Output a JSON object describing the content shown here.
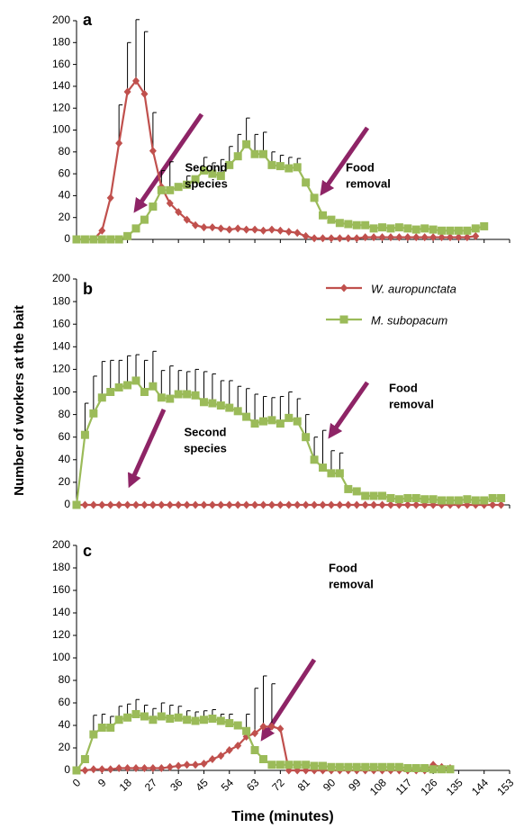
{
  "axis_labels": {
    "y": "Number of workers at the bait",
    "x": "Time (minutes)"
  },
  "chart_data": [
    {
      "type": "line",
      "panel_label": "a",
      "xlim": [
        0,
        153
      ],
      "ylim": [
        0,
        200
      ],
      "xticks": [
        0,
        9,
        18,
        27,
        36,
        45,
        54,
        63,
        72,
        81,
        90,
        99,
        108,
        117,
        126,
        135,
        144,
        153
      ],
      "yticks": [
        0,
        20,
        40,
        60,
        80,
        100,
        120,
        140,
        160,
        180,
        200
      ],
      "show_xtick_labels": false,
      "x": [
        0,
        3,
        6,
        9,
        12,
        15,
        18,
        21,
        24,
        27,
        30,
        33,
        36,
        39,
        42,
        45,
        48,
        51,
        54,
        57,
        60,
        63,
        66,
        69,
        72,
        75,
        78,
        81,
        84,
        87,
        90,
        93,
        96,
        99,
        102,
        105,
        108,
        111,
        114,
        117,
        120,
        123,
        126,
        129,
        132,
        135,
        138,
        141,
        144
      ],
      "series": [
        {
          "color": "#c0504d",
          "marker": "diamond",
          "values": [
            0,
            0,
            0,
            8,
            38,
            88,
            135,
            145,
            133,
            81,
            48,
            33,
            25,
            18,
            13,
            11,
            11,
            10,
            9,
            10,
            9,
            9,
            8,
            9,
            8,
            7,
            6,
            3,
            1,
            1,
            1,
            1,
            1,
            1,
            2,
            2,
            2,
            2,
            2,
            2,
            2,
            2,
            2,
            2,
            2,
            2,
            2,
            3,
            null
          ],
          "errors": [
            null,
            null,
            null,
            null,
            null,
            35,
            45,
            56,
            57,
            35,
            15,
            null,
            null,
            null,
            null,
            null,
            null,
            null,
            null,
            null,
            null,
            null,
            null,
            null,
            null,
            null,
            null,
            null,
            null,
            null,
            null,
            null,
            null,
            null,
            null,
            null,
            null,
            null,
            null,
            null,
            null,
            null,
            null,
            null,
            null,
            null,
            null,
            null,
            null
          ]
        },
        {
          "color": "#9bbb59",
          "marker": "square",
          "values": [
            0,
            0,
            0,
            0,
            0,
            0,
            3,
            10,
            18,
            30,
            45,
            45,
            48,
            50,
            55,
            63,
            60,
            58,
            68,
            76,
            87,
            78,
            78,
            68,
            67,
            65,
            66,
            52,
            38,
            22,
            18,
            15,
            14,
            13,
            13,
            10,
            11,
            10,
            11,
            10,
            9,
            10,
            9,
            8,
            8,
            8,
            8,
            10,
            12
          ],
          "errors": [
            null,
            null,
            null,
            null,
            null,
            null,
            null,
            null,
            null,
            null,
            null,
            26,
            null,
            8,
            null,
            12,
            10,
            15,
            17,
            20,
            24,
            18,
            20,
            12,
            10,
            10,
            8,
            null,
            null,
            null,
            null,
            null,
            null,
            null,
            null,
            null,
            null,
            null,
            null,
            null,
            null,
            null,
            null,
            null,
            null,
            null,
            null,
            null,
            null
          ]
        }
      ],
      "annotations": [
        {
          "lines": [
            "Second",
            "species"
          ]
        },
        {
          "lines": [
            "Food",
            "removal"
          ]
        }
      ]
    },
    {
      "type": "line",
      "panel_label": "b",
      "xlim": [
        0,
        153
      ],
      "ylim": [
        0,
        200
      ],
      "xticks": [
        0,
        9,
        18,
        27,
        36,
        45,
        54,
        63,
        72,
        81,
        90,
        99,
        108,
        117,
        126,
        135,
        144,
        153
      ],
      "yticks": [
        0,
        20,
        40,
        60,
        80,
        100,
        120,
        140,
        160,
        180,
        200
      ],
      "show_xtick_labels": false,
      "legend": "upper right",
      "x": [
        0,
        3,
        6,
        9,
        12,
        15,
        18,
        21,
        24,
        27,
        30,
        33,
        36,
        39,
        42,
        45,
        48,
        51,
        54,
        57,
        60,
        63,
        66,
        69,
        72,
        75,
        78,
        81,
        84,
        87,
        90,
        93,
        96,
        99,
        102,
        105,
        108,
        111,
        114,
        117,
        120,
        123,
        126,
        129,
        132,
        135,
        138,
        141,
        144,
        147,
        150
      ],
      "series": [
        {
          "name": "W. auropunctata",
          "color": "#c0504d",
          "marker": "diamond",
          "values": [
            0,
            0,
            0,
            0,
            0,
            0,
            0,
            0,
            0,
            0,
            0,
            0,
            0,
            0,
            0,
            0,
            0,
            0,
            0,
            0,
            0,
            0,
            0,
            0,
            0,
            0,
            0,
            0,
            0,
            0,
            0,
            0,
            0,
            0,
            0,
            0,
            0,
            0,
            0,
            0,
            0,
            0,
            0,
            0,
            0,
            0,
            0,
            0,
            0,
            0,
            0
          ]
        },
        {
          "name": "M. subopacum",
          "color": "#9bbb59",
          "marker": "square",
          "values": [
            0,
            62,
            81,
            95,
            100,
            104,
            106,
            110,
            100,
            105,
            95,
            94,
            98,
            98,
            97,
            91,
            90,
            88,
            86,
            83,
            78,
            72,
            74,
            75,
            72,
            77,
            74,
            60,
            40,
            33,
            28,
            28,
            14,
            12,
            8,
            8,
            8,
            6,
            5,
            6,
            6,
            5,
            5,
            4,
            4,
            4,
            5,
            4,
            4,
            6,
            6
          ],
          "errors": [
            null,
            28,
            33,
            32,
            28,
            24,
            26,
            23,
            28,
            31,
            24,
            29,
            21,
            20,
            23,
            27,
            26,
            22,
            24,
            22,
            25,
            26,
            22,
            20,
            24,
            23,
            20,
            20,
            20,
            33,
            20,
            18,
            null,
            null,
            null,
            null,
            null,
            null,
            null,
            null,
            null,
            null,
            null,
            null,
            null,
            null,
            null,
            null,
            null,
            null,
            null
          ]
        }
      ],
      "annotations": [
        {
          "lines": [
            "Food",
            "removal"
          ]
        },
        {
          "lines": [
            "Second",
            "species"
          ]
        }
      ]
    },
    {
      "type": "line",
      "panel_label": "c",
      "xlim": [
        0,
        153
      ],
      "ylim": [
        0,
        200
      ],
      "xticks": [
        0,
        9,
        18,
        27,
        36,
        45,
        54,
        63,
        72,
        81,
        90,
        99,
        108,
        117,
        126,
        135,
        144,
        153
      ],
      "yticks": [
        0,
        20,
        40,
        60,
        80,
        100,
        120,
        140,
        160,
        180,
        200
      ],
      "show_xtick_labels": true,
      "x": [
        0,
        3,
        6,
        9,
        12,
        15,
        18,
        21,
        24,
        27,
        30,
        33,
        36,
        39,
        42,
        45,
        48,
        51,
        54,
        57,
        60,
        63,
        66,
        69,
        72,
        75,
        78,
        81,
        84,
        87,
        90,
        93,
        96,
        99,
        102,
        105,
        108,
        111,
        114,
        117,
        120,
        123,
        126,
        129,
        132
      ],
      "series": [
        {
          "color": "#c0504d",
          "marker": "diamond",
          "values": [
            0,
            0,
            1,
            1,
            1,
            2,
            2,
            2,
            2,
            2,
            2,
            3,
            4,
            5,
            5,
            6,
            10,
            13,
            18,
            22,
            30,
            33,
            39,
            39,
            37,
            0,
            0,
            0,
            0,
            0,
            0,
            0,
            0,
            0,
            0,
            0,
            0,
            0,
            0,
            0,
            0,
            0,
            5,
            3,
            2
          ],
          "errors": [
            null,
            null,
            null,
            null,
            null,
            null,
            null,
            null,
            null,
            null,
            null,
            null,
            null,
            null,
            null,
            null,
            null,
            null,
            null,
            null,
            20,
            40,
            45,
            38,
            null,
            null,
            null,
            null,
            null,
            null,
            null,
            null,
            null,
            null,
            null,
            null,
            null,
            null,
            null,
            null,
            null,
            null,
            null,
            null,
            null
          ]
        },
        {
          "color": "#9bbb59",
          "marker": "square",
          "values": [
            0,
            10,
            32,
            38,
            38,
            45,
            47,
            50,
            48,
            45,
            48,
            46,
            47,
            45,
            44,
            45,
            46,
            44,
            42,
            40,
            35,
            18,
            10,
            5,
            5,
            5,
            5,
            5,
            4,
            4,
            3,
            3,
            3,
            3,
            3,
            3,
            3,
            3,
            3,
            2,
            2,
            2,
            1,
            1,
            1
          ],
          "errors": [
            null,
            null,
            17,
            12,
            10,
            12,
            12,
            13,
            10,
            10,
            12,
            12,
            10,
            8,
            8,
            8,
            8,
            6,
            8,
            null,
            null,
            null,
            null,
            null,
            null,
            null,
            null,
            null,
            null,
            null,
            null,
            null,
            null,
            null,
            null,
            null,
            null,
            null,
            null,
            null,
            null,
            null,
            null,
            null,
            null
          ]
        }
      ],
      "annotations": [
        {
          "lines": [
            "Food",
            "removal"
          ]
        }
      ]
    }
  ]
}
